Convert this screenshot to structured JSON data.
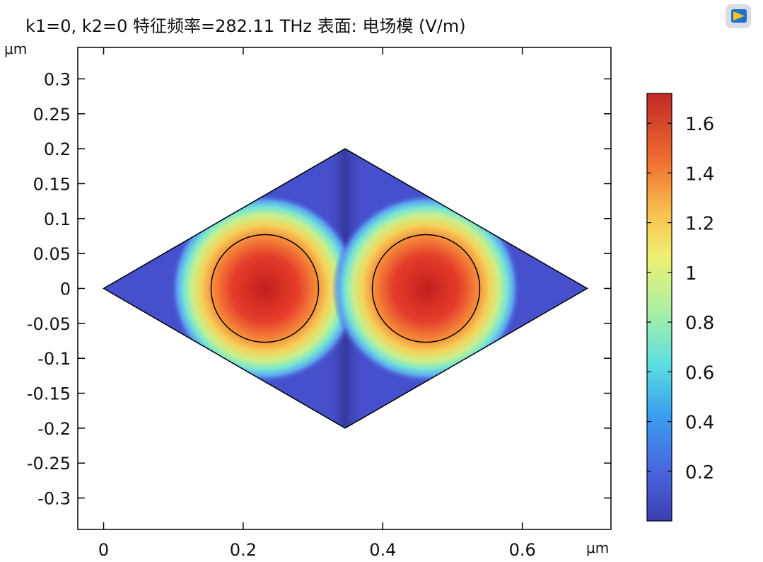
{
  "chart_data": {
    "type": "heatmap",
    "title": "k1=0, k2=0 特征频率=282.11 THz  表面: 电场模 (V/m)",
    "xlabel": "μm",
    "ylabel": "μm",
    "xlim": [
      -0.037,
      0.727
    ],
    "ylim": [
      -0.345,
      0.345
    ],
    "x_ticks": [
      "0",
      "0.2",
      "0.4",
      "0.6"
    ],
    "x_tick_values": [
      0,
      0.2,
      0.4,
      0.6
    ],
    "y_ticks": [
      "0.3",
      "0.25",
      "0.2",
      "0.15",
      "0.1",
      "0.05",
      "0",
      "-0.05",
      "-0.1",
      "-0.15",
      "-0.2",
      "-0.25",
      "-0.3"
    ],
    "y_tick_values": [
      0.3,
      0.25,
      0.2,
      0.15,
      0.1,
      0.05,
      0,
      -0.05,
      -0.1,
      -0.15,
      -0.2,
      -0.25,
      -0.3
    ],
    "domain_rhombus": [
      [
        0,
        0
      ],
      [
        0.346,
        0.2
      ],
      [
        0.693,
        0
      ],
      [
        0.346,
        -0.2
      ]
    ],
    "rods": [
      {
        "cx": 0.231,
        "cy": 0,
        "r": 0.077
      },
      {
        "cx": 0.462,
        "cy": 0,
        "r": 0.077
      }
    ],
    "field_range": [
      0,
      1.72
    ],
    "colorbar": {
      "ticks": [
        "1.6",
        "1.4",
        "1.2",
        "1",
        "0.8",
        "0.6",
        "0.4",
        "0.2"
      ],
      "tick_values": [
        1.6,
        1.4,
        1.2,
        1.0,
        0.8,
        0.6,
        0.4,
        0.2
      ],
      "min": 0.0,
      "max": 1.72,
      "colormap": "rainbow"
    },
    "grid": false,
    "legend": "colorbar-right"
  },
  "icon": "app-logo-icon"
}
